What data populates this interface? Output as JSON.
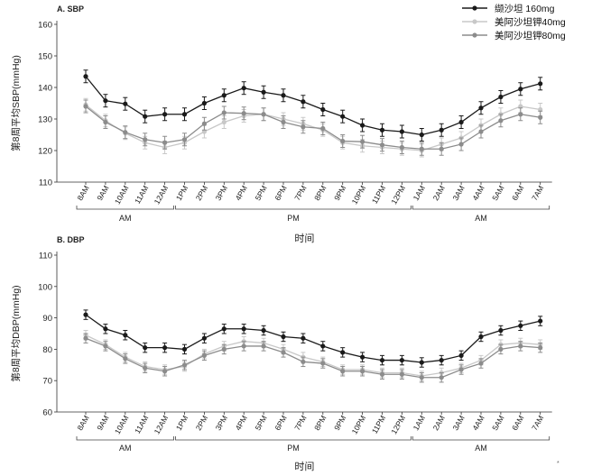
{
  "legend": {
    "placement": "top-right",
    "entries": [
      {
        "label": "缬沙坦 160mg",
        "color": "#1a1a1a"
      },
      {
        "label": "美阿沙坦钾40mg",
        "color": "#c8c8c8"
      },
      {
        "label": "美阿沙坦钾80mg",
        "color": "#8c8c8c"
      }
    ]
  },
  "footnote_mark": "*",
  "chart_data": [
    {
      "type": "line",
      "title": "A. SBP",
      "xlabel": "时间",
      "ylabel": "第8周平均SBP(mmHg)",
      "ylim": [
        110,
        160
      ],
      "yticks": [
        110,
        120,
        130,
        140,
        150,
        160
      ],
      "grid": false,
      "categories": [
        "8AM",
        "9AM",
        "10AM",
        "11AM",
        "12AM",
        "1PM",
        "2PM",
        "3PM",
        "4PM",
        "5PM",
        "6PM",
        "7PM",
        "8PM",
        "9PM",
        "10PM",
        "11PM",
        "12PM",
        "1AM",
        "2AM",
        "3AM",
        "4AM",
        "5AM",
        "6AM",
        "7AM"
      ],
      "groups": [
        {
          "label": "AM",
          "from": 0,
          "to": 4
        },
        {
          "label": "PM",
          "from": 5,
          "to": 16
        },
        {
          "label": "AM",
          "from": 17,
          "to": 23
        }
      ],
      "series": [
        {
          "name": "缬沙坦 160mg",
          "color": "#1a1a1a",
          "error": 2,
          "values": [
            143.5,
            135.8,
            134.8,
            130.8,
            131.5,
            131.5,
            135,
            137.5,
            139.8,
            138.5,
            137.5,
            135.5,
            133,
            130.8,
            128,
            126.5,
            126,
            125,
            126.5,
            129,
            133.5,
            137,
            139.5,
            141.2
          ]
        },
        {
          "name": "美阿沙坦钾40mg",
          "color": "#c8c8c8",
          "error": 2,
          "values": [
            134.5,
            129.5,
            125.5,
            122.5,
            121,
            122.5,
            126,
            129,
            131,
            131.5,
            130,
            128.5,
            126.5,
            122.5,
            121.5,
            121,
            120.5,
            120,
            122,
            124,
            128,
            131.5,
            134,
            133
          ]
        },
        {
          "name": "美阿沙坦钾80mg",
          "color": "#8c8c8c",
          "error": 2,
          "values": [
            134,
            129,
            125.8,
            123.5,
            122.5,
            123.5,
            128.5,
            132,
            131.8,
            131.5,
            129,
            127.5,
            127,
            123,
            122.8,
            121.8,
            121,
            120.5,
            120.5,
            122,
            126,
            129.5,
            131.5,
            130.5
          ]
        }
      ]
    },
    {
      "type": "line",
      "title": "B. DBP",
      "xlabel": "时间",
      "ylabel": "第8周平均DBP(mmHg)",
      "ylim": [
        60,
        110
      ],
      "yticks": [
        60,
        70,
        80,
        90,
        100,
        110
      ],
      "grid": false,
      "categories": [
        "8AM",
        "9AM",
        "10AM",
        "11AM",
        "12AM",
        "1PM",
        "2PM",
        "3PM",
        "4PM",
        "5PM",
        "6PM",
        "7PM",
        "8PM",
        "9PM",
        "10PM",
        "11PM",
        "12PM",
        "1AM",
        "2AM",
        "3AM",
        "4AM",
        "5AM",
        "6AM",
        "7AM"
      ],
      "groups": [
        {
          "label": "AM",
          "from": 0,
          "to": 4
        },
        {
          "label": "PM",
          "from": 5,
          "to": 16
        },
        {
          "label": "AM",
          "from": 17,
          "to": 23
        }
      ],
      "series": [
        {
          "name": "缬沙坦 160mg",
          "color": "#1a1a1a",
          "error": 1.5,
          "values": [
            91,
            86.5,
            84.5,
            80.5,
            80.5,
            80,
            83.5,
            86.5,
            86.5,
            86,
            84,
            83.5,
            81,
            79,
            77.5,
            76.5,
            76.5,
            75.8,
            76.5,
            78,
            84,
            86,
            87.5,
            89
          ]
        },
        {
          "name": "美阿沙坦钾40mg",
          "color": "#c8c8c8",
          "error": 1.5,
          "values": [
            84.5,
            81.5,
            77.5,
            74.5,
            73.5,
            74.5,
            78.5,
            81,
            82.5,
            82,
            80,
            77.5,
            76,
            73.5,
            73.5,
            72.5,
            72.5,
            71.5,
            72.5,
            74,
            76.5,
            81.5,
            82,
            81.5
          ]
        },
        {
          "name": "美阿沙坦钾80mg",
          "color": "#8c8c8c",
          "error": 1.5,
          "values": [
            83.5,
            81,
            77,
            74,
            73,
            75,
            78,
            80,
            81,
            81,
            79,
            76,
            75.5,
            73,
            73,
            72,
            72,
            71,
            71,
            73.5,
            75.5,
            80,
            81,
            80.5
          ]
        }
      ]
    }
  ]
}
